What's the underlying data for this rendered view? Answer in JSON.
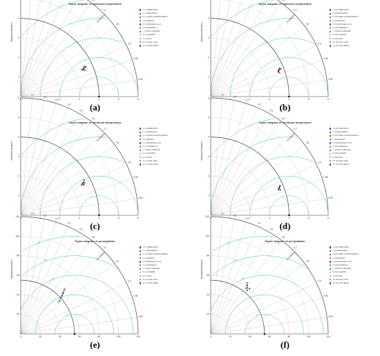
{
  "panels": [
    {
      "id": "a",
      "title": "Taylor diagram of maximum temperature",
      "label": "(a)",
      "legend": [
        "1. L3 CRBM-CM6-1",
        "2. L3 MRI-ESM2-0",
        "3. L3 CSIRO-ACCESS-ESM1-5",
        "4. L3 MIROC6",
        "5. L3 MPI-ESM-1-2-LR",
        "6. L3 NorESM2-LL",
        "7. L3 BCC-CSM2-MR",
        "8. L3 CanESM5",
        "9. L3 CFSV",
        "10. L3 CFSL-CMA",
        "11. L3 CFSL-ESM4"
      ],
      "legend_colors": [
        "#1f4fbf",
        "#111111",
        "#2a8a2a",
        "#d11b1b",
        "#7a3fb0",
        "#e07b00",
        "#1a9aa8",
        "#7ab8e0",
        "#b0b0b0",
        "#c23b8c",
        "#445566"
      ]
    },
    {
      "id": "b",
      "title": "Taylor diagram of maximum temperature",
      "label": "(b)",
      "legend": [
        "1. CM CNRM-CM6-1",
        "2. CM MRI-ESM2-0",
        "3. CM CSIRO-ACCESS-ESM1-5",
        "4. CM MIROC6",
        "5. CM MPI-ESM-1-2-LR",
        "6. CM NorESM2-LL",
        "7. CM BCC-CSM2-MR",
        "8. CM CanESM5",
        "9. CM CFSV",
        "10. CM CFSL-CMA",
        "11. CM CFSL-ESM4"
      ],
      "legend_colors": [
        "#1f4fbf",
        "#111111",
        "#2a8a2a",
        "#d11b1b",
        "#7a3fb0",
        "#e07b00",
        "#1a9aa8",
        "#7ab8e0",
        "#b0b0b0",
        "#c23b8c",
        "#445566"
      ]
    },
    {
      "id": "c",
      "title": "Taylor diagram of minimum temperature",
      "label": "(c)",
      "legend": [
        "1. L3 CRBM-CM6-1",
        "2. L3 MRI-ESM2-0",
        "3. L3 CSIRO-ACCESS-ESM1-5",
        "4. L3 MIROC6",
        "5. L3 MPI-ESM-1-2-LR",
        "6. L3 NorESM2-LL",
        "7. L3 BCC-CSM2-MR",
        "8. L3 CanESM5",
        "9. L3 CFSV",
        "10. L3 CFSL-CMA",
        "11. L3 CFSL-ESM4"
      ],
      "legend_colors": [
        "#1f4fbf",
        "#111111",
        "#2a8a2a",
        "#d11b1b",
        "#7a3fb0",
        "#e07b00",
        "#1a9aa8",
        "#7ab8e0",
        "#b0b0b0",
        "#c23b8c",
        "#445566"
      ]
    },
    {
      "id": "d",
      "title": "Taylor diagram of minimum temperature",
      "label": "(d)",
      "legend": [
        "1. CM CNRM-CM6-1",
        "2. CM MRI-ESM2-0",
        "3. CM CSIRO-ACCESS-ESM1-5",
        "4. CM MIROC6",
        "5. CM MPI-ESM-1-2-LR",
        "6. CM NorESM2-LL",
        "7. CM BCC-CSM2-MR",
        "8. CM CanESM5",
        "9. CM CFSV",
        "10. CM CFSL-CMA",
        "11. CM CFSL-ESM4"
      ],
      "legend_colors": [
        "#1f4fbf",
        "#111111",
        "#2a8a2a",
        "#d11b1b",
        "#7a3fb0",
        "#e07b00",
        "#1a9aa8",
        "#7ab8e0",
        "#b0b0b0",
        "#c23b8c",
        "#445566"
      ]
    },
    {
      "id": "e",
      "title": "Taylor diagram of precipitation",
      "label": "(e)",
      "legend": [
        "1. L3 CRBM-CM6-1",
        "2. L3 MRI-ESM2-0",
        "3. L3 CSIRO-ACCESS-ESM1-5",
        "4. L3 MIROC6",
        "5. L3 MPI-ESM-1-2-LR",
        "6. L3 NorESM2-LL",
        "7. L3 BCC-CSM2-MR",
        "8. L3 CanESM5",
        "9. L3 CFSV",
        "10. L3 CFSL-CMA",
        "11. L3 CFSL-ESM4"
      ],
      "legend_colors": [
        "#1f4fbf",
        "#111111",
        "#2a8a2a",
        "#d11b1b",
        "#7a3fb0",
        "#e07b00",
        "#1a9aa8",
        "#7ab8e0",
        "#b0b0b0",
        "#c23b8c",
        "#445566"
      ]
    },
    {
      "id": "f",
      "title": "Taylor diagram of precipitation",
      "label": "(f)",
      "legend": [
        "1. CM CNRM-CM6-1",
        "2. CM MRI-ESM2-0",
        "3. CM CSIRO-ACCESS-ESM1-5",
        "4. CM MIROC6",
        "5. CM MPI-ESM-1-2-LR",
        "6. CM NorESM2-LL",
        "7. CM BCC-CSM2-MR",
        "8. CM CanESM5",
        "9. CM CFSV",
        "10. CM CFSL-CMA",
        "11. CM CFSL-ESM4"
      ],
      "legend_colors": [
        "#1f4fbf",
        "#111111",
        "#2a8a2a",
        "#d11b1b",
        "#7a3fb0",
        "#e07b00",
        "#1a9aa8",
        "#7ab8e0",
        "#b0b0b0",
        "#c23b8c",
        "#445566"
      ]
    }
  ],
  "chart_data": [
    {
      "type": "scatter",
      "id": "a",
      "title": "Taylor diagram of maximum temperature",
      "ylabel": "Standard deviation",
      "arc_label": "Correlation",
      "std_range": [
        0,
        6
      ],
      "std_ticks": [
        0,
        1,
        2,
        3,
        4,
        5,
        6
      ],
      "correlation_ticks": [
        0.1,
        0.2,
        0.3,
        0.4,
        0.5,
        0.6,
        0.7,
        0.8,
        0.9,
        0.95,
        0.99
      ],
      "reference_std": 4.0,
      "rmsd_contours": [
        1,
        2,
        3,
        4,
        5
      ],
      "points": [
        {
          "index": 1,
          "std": 3.55,
          "corr": 0.91
        },
        {
          "index": 2,
          "std": 3.5,
          "corr": 0.915
        },
        {
          "index": 3,
          "std": 3.6,
          "corr": 0.905
        },
        {
          "index": 4,
          "std": 3.45,
          "corr": 0.92
        },
        {
          "index": 5,
          "std": 3.65,
          "corr": 0.91
        },
        {
          "index": 6,
          "std": 3.4,
          "corr": 0.912
        },
        {
          "index": 7,
          "std": 3.55,
          "corr": 0.925
        }
      ]
    },
    {
      "type": "scatter",
      "id": "b",
      "title": "Taylor diagram of maximum temperature",
      "ylabel": "Standard deviation",
      "arc_label": "Correlation",
      "std_range": [
        0,
        6
      ],
      "std_ticks": [
        0,
        1,
        2,
        3,
        4,
        5,
        6
      ],
      "correlation_ticks": [
        0.1,
        0.2,
        0.3,
        0.4,
        0.5,
        0.6,
        0.7,
        0.8,
        0.9,
        0.95,
        0.99
      ],
      "reference_std": 4.0,
      "rmsd_contours": [
        1,
        2,
        3,
        4,
        5
      ],
      "points": [
        {
          "index": 1,
          "std": 3.75,
          "corr": 0.93
        },
        {
          "index": 2,
          "std": 3.7,
          "corr": 0.935
        },
        {
          "index": 3,
          "std": 3.8,
          "corr": 0.925
        },
        {
          "index": 4,
          "std": 3.68,
          "corr": 0.94
        },
        {
          "index": 5,
          "std": 3.85,
          "corr": 0.93
        },
        {
          "index": 6,
          "std": 3.72,
          "corr": 0.945
        }
      ]
    },
    {
      "type": "scatter",
      "id": "c",
      "title": "Taylor diagram of minimum temperature",
      "ylabel": "Standard deviation",
      "arc_label": "Correlation",
      "std_range": [
        0,
        6
      ],
      "std_ticks": [
        0,
        1,
        2,
        3,
        4,
        5,
        6
      ],
      "correlation_ticks": [
        0.1,
        0.2,
        0.3,
        0.4,
        0.5,
        0.6,
        0.7,
        0.8,
        0.9,
        0.95,
        0.99
      ],
      "reference_std": 4.0,
      "rmsd_contours": [
        1,
        2,
        3,
        4,
        5
      ],
      "points": [
        {
          "index": 1,
          "std": 3.55,
          "corr": 0.89
        },
        {
          "index": 2,
          "std": 3.62,
          "corr": 0.885
        },
        {
          "index": 3,
          "std": 3.48,
          "corr": 0.895
        },
        {
          "index": 4,
          "std": 3.7,
          "corr": 0.875
        },
        {
          "index": 5,
          "std": 3.58,
          "corr": 0.9
        },
        {
          "index": 6,
          "std": 3.66,
          "corr": 0.893
        }
      ]
    },
    {
      "type": "scatter",
      "id": "d",
      "title": "Taylor diagram of minimum temperature",
      "ylabel": "Standard deviation",
      "arc_label": "Correlation",
      "std_range": [
        0,
        6
      ],
      "std_ticks": [
        0,
        1,
        2,
        3,
        4,
        5,
        6
      ],
      "correlation_ticks": [
        0.1,
        0.2,
        0.3,
        0.4,
        0.5,
        0.6,
        0.7,
        0.8,
        0.9,
        0.95,
        0.99
      ],
      "reference_std": 4.0,
      "rmsd_contours": [
        1,
        2,
        3,
        4,
        5
      ],
      "points": [
        {
          "index": 1,
          "std": 3.75,
          "corr": 0.93
        },
        {
          "index": 2,
          "std": 3.8,
          "corr": 0.925
        },
        {
          "index": 3,
          "std": 3.7,
          "corr": 0.935
        },
        {
          "index": 4,
          "std": 3.85,
          "corr": 0.92
        },
        {
          "index": 5,
          "std": 3.78,
          "corr": 0.94
        }
      ]
    },
    {
      "type": "scatter",
      "id": "e",
      "title": "Taylor diagram of precipitation",
      "ylabel": "Standard deviation",
      "arc_label": "Correlation",
      "std_range": [
        0,
        120
      ],
      "std_ticks": [
        0,
        20,
        40,
        60,
        80,
        100,
        120
      ],
      "correlation_ticks": [
        0.1,
        0.2,
        0.3,
        0.4,
        0.5,
        0.6,
        0.7,
        0.8,
        0.9,
        0.95,
        0.99
      ],
      "reference_std": 55,
      "rmsd_contours": [
        20,
        40,
        60,
        80,
        100
      ],
      "points": [
        {
          "index": 1,
          "std": 56,
          "corr": 0.74
        },
        {
          "index": 2,
          "std": 60,
          "corr": 0.72
        },
        {
          "index": 3,
          "std": 52,
          "corr": 0.76
        },
        {
          "index": 4,
          "std": 64,
          "corr": 0.7
        },
        {
          "index": 5,
          "std": 58,
          "corr": 0.73
        },
        {
          "index": 6,
          "std": 54,
          "corr": 0.75
        },
        {
          "index": 7,
          "std": 62,
          "corr": 0.71
        },
        {
          "index": 8,
          "std": 50,
          "corr": 0.77
        }
      ]
    },
    {
      "type": "scatter",
      "id": "f",
      "title": "Taylor diagram of precipitation",
      "ylabel": "Standard deviation",
      "arc_label": "Correlation",
      "std_range": [
        0,
        120
      ],
      "std_ticks": [
        0,
        20,
        40,
        60,
        80,
        100,
        120
      ],
      "correlation_ticks": [
        0.1,
        0.2,
        0.3,
        0.4,
        0.5,
        0.6,
        0.7,
        0.8,
        0.9,
        0.95,
        0.99
      ],
      "reference_std": 55,
      "rmsd_contours": [
        20,
        40,
        60,
        80,
        100
      ],
      "points": [
        {
          "index": 1,
          "std": 60,
          "corr": 0.62
        },
        {
          "index": 2,
          "std": 62,
          "corr": 0.6
        },
        {
          "index": 3,
          "std": 58,
          "corr": 0.64
        },
        {
          "index": 4,
          "std": 64,
          "corr": 0.58
        },
        {
          "index": 5,
          "std": 61,
          "corr": 0.65
        },
        {
          "index": 6,
          "std": 59,
          "corr": 0.61
        }
      ]
    }
  ]
}
